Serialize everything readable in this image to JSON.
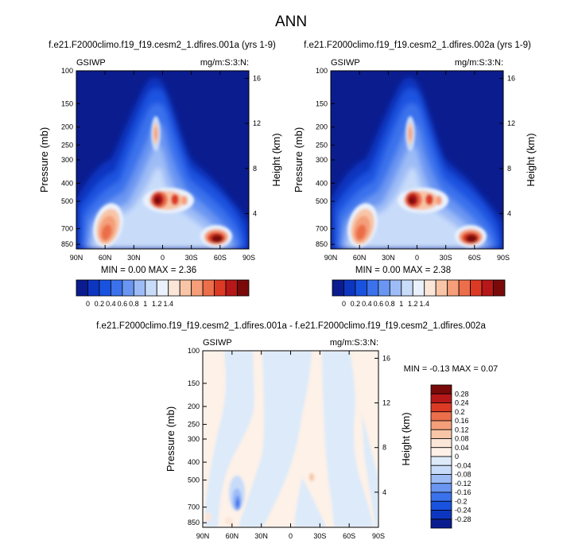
{
  "figure_title": "ANN",
  "chart_data": [
    {
      "type": "heatmap",
      "id": "p1",
      "title": "f.e21.F2000climo.f19_f19.cesm2_1.dfires.001a (yrs 1-9)",
      "variable": "GSIWP",
      "units": "mg/m:S:3:N:",
      "ylabel": "Pressure (mb)",
      "ylabel_right": "Height (km)",
      "x_ticks": [
        "90N",
        "60N",
        "30N",
        "0",
        "30S",
        "60S",
        "90S"
      ],
      "y_ticks": [
        "100",
        "150",
        "200",
        "250",
        "300",
        "400",
        "500",
        "700",
        "850"
      ],
      "y_ticks_right": [
        "16",
        "12",
        "8",
        "4"
      ],
      "min": "0.00",
      "max": "2.36",
      "colorbar_labels": [
        "0",
        "0.2",
        "0.4",
        "0.6",
        "0.8",
        "1",
        "1.2",
        "1.4"
      ],
      "colorbar_colors": [
        "#0b1c8f",
        "#0d36c0",
        "#1a52e0",
        "#3b72ec",
        "#6a96f2",
        "#9dbcf6",
        "#c8dcfa",
        "#eaf1fc",
        "#fbe6d8",
        "#f8c5a6",
        "#f49f7a",
        "#ec6e4a",
        "#dc3a24",
        "#b6181a",
        "#7a0a0a"
      ]
    },
    {
      "type": "heatmap",
      "id": "p2",
      "title": "f.e21.F2000climo.f19_f19.cesm2_1.dfires.002a (yrs 1-9)",
      "variable": "GSIWP",
      "units": "mg/m:S:3:N:",
      "ylabel": "Pressure (mb)",
      "ylabel_right": "Height (km)",
      "x_ticks": [
        "90N",
        "60N",
        "30N",
        "0",
        "30S",
        "60S",
        "90S"
      ],
      "y_ticks": [
        "100",
        "150",
        "200",
        "250",
        "300",
        "400",
        "500",
        "700",
        "850"
      ],
      "y_ticks_right": [
        "16",
        "12",
        "8",
        "4"
      ],
      "min": "0.00",
      "max": "2.38",
      "colorbar_labels": [
        "0",
        "0.2",
        "0.4",
        "0.6",
        "0.8",
        "1",
        "1.2",
        "1.4"
      ],
      "colorbar_colors": [
        "#0b1c8f",
        "#0d36c0",
        "#1a52e0",
        "#3b72ec",
        "#6a96f2",
        "#9dbcf6",
        "#c8dcfa",
        "#eaf1fc",
        "#fbe6d8",
        "#f8c5a6",
        "#f49f7a",
        "#ec6e4a",
        "#dc3a24",
        "#b6181a",
        "#7a0a0a"
      ]
    },
    {
      "type": "heatmap",
      "id": "diff",
      "title": "f.e21.F2000climo.f19_f19.cesm2_1.dfires.001a - f.e21.F2000climo.f19_f19.cesm2_1.dfires.002a",
      "variable": "GSIWP",
      "units": "mg/m:S:3:N:",
      "ylabel": "Pressure (mb)",
      "ylabel_right": "Height (km)",
      "x_ticks": [
        "90N",
        "60N",
        "30N",
        "0",
        "30S",
        "60S",
        "90S"
      ],
      "y_ticks": [
        "100",
        "150",
        "200",
        "250",
        "300",
        "400",
        "500",
        "700",
        "850"
      ],
      "y_ticks_right": [
        "16",
        "12",
        "8",
        "4"
      ],
      "min": "-0.13",
      "max": "0.07",
      "colorbar_labels": [
        "0.28",
        "0.24",
        "0.2",
        "0.16",
        "0.12",
        "0.08",
        "0.04",
        "0",
        "-0.04",
        "-0.08",
        "-0.12",
        "-0.16",
        "-0.2",
        "-0.24",
        "-0.28"
      ],
      "colorbar_colors": [
        "#7a0a0a",
        "#b6181a",
        "#dc3a24",
        "#ec6e4a",
        "#f49f7a",
        "#f8c5a6",
        "#fbe6d8",
        "#fdf1e8",
        "#dceafa",
        "#c8dcfa",
        "#9dbcf6",
        "#6a96f2",
        "#3b72ec",
        "#1a52e0",
        "#0d36c0",
        "#0b1c8f"
      ]
    }
  ]
}
